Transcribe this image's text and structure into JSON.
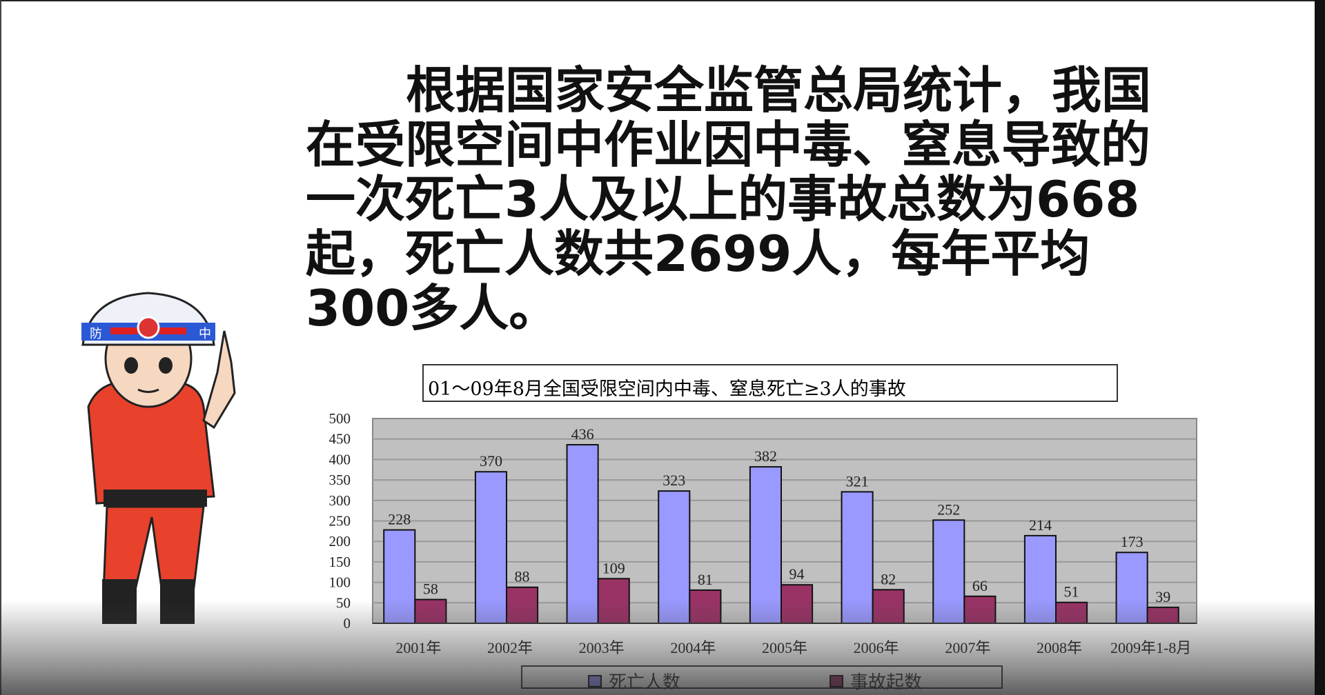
{
  "paragraph": "根据国家安全监管总局统计，我国在受限空间中作业因中毒、窒息导致的一次死亡3人及以上的事故总数为668起，死亡人数共2699人，每年平均300多人。",
  "chart_data": {
    "type": "bar",
    "title": "01～09年8月全国受限空间内中毒、窒息死亡≥3人的事故",
    "categories": [
      "2001年",
      "2002年",
      "2003年",
      "2004年",
      "2005年",
      "2006年",
      "2007年",
      "2008年",
      "2009年1-8月"
    ],
    "series": [
      {
        "name": "死亡人数",
        "color": "#9999ff",
        "values": [
          228,
          370,
          436,
          323,
          382,
          321,
          252,
          214,
          173
        ]
      },
      {
        "name": "事故起数",
        "color": "#993366",
        "values": [
          58,
          88,
          109,
          81,
          94,
          82,
          66,
          51,
          39
        ]
      }
    ],
    "ylim": [
      0,
      500
    ],
    "yticks": [
      0,
      50,
      100,
      150,
      200,
      250,
      300,
      350,
      400,
      450,
      500
    ],
    "grid": true,
    "plot_background": "#c0c0c0",
    "legend_placement": "bottom"
  },
  "character": {
    "helmet_text_left": "防",
    "helmet_text_right": "中"
  }
}
